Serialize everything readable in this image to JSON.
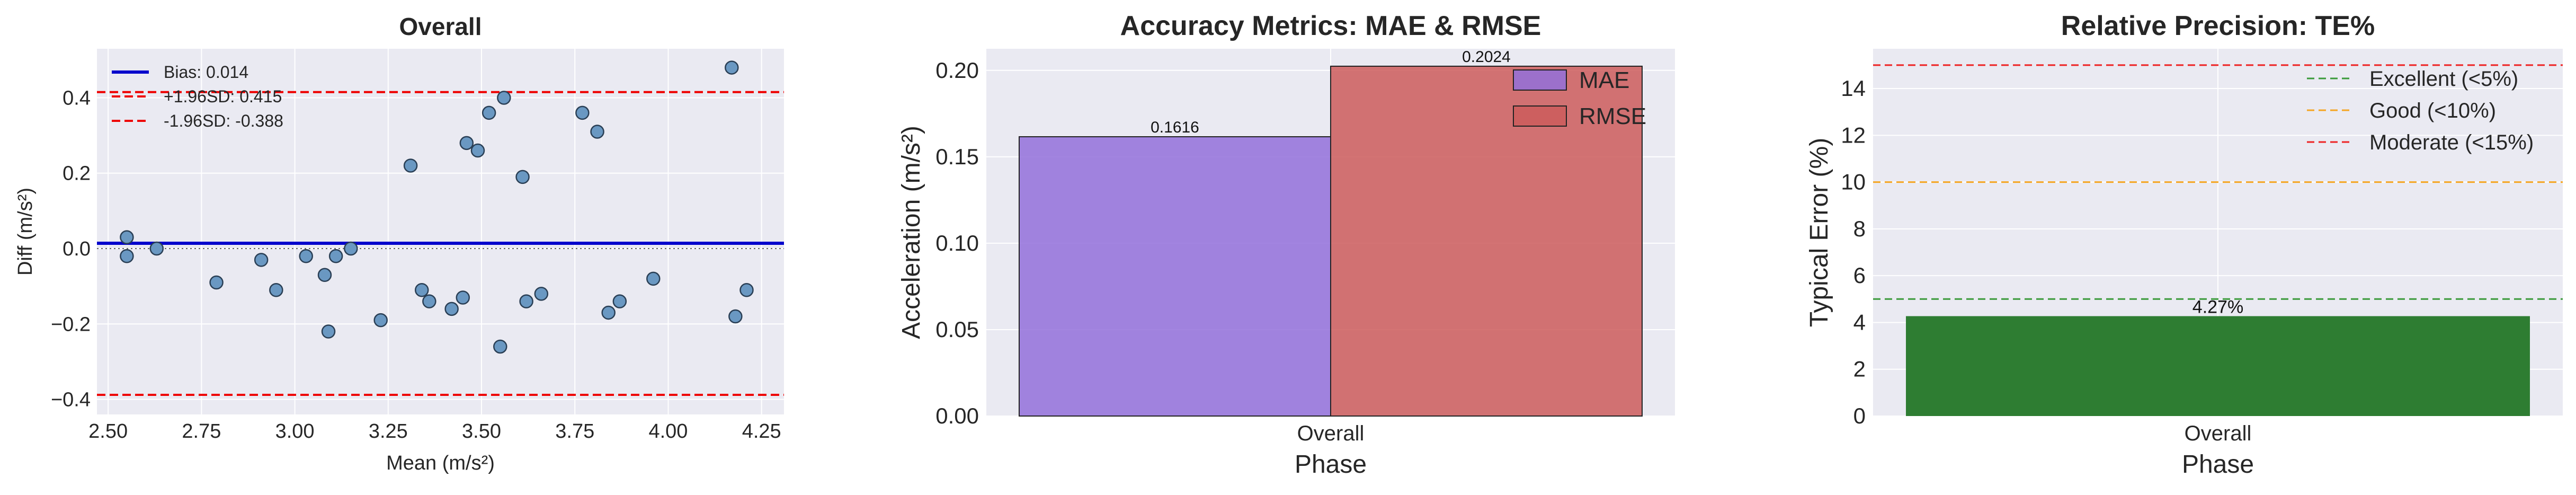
{
  "chart_data": [
    {
      "type": "scatter",
      "title": "Overall",
      "xlabel": "Mean (m/s²)",
      "ylabel": "Diff (m/s²)",
      "xlim": [
        2.47,
        4.31
      ],
      "ylim": [
        -0.44,
        0.53
      ],
      "xticks": [
        "2.50",
        "2.75",
        "3.00",
        "3.25",
        "3.50",
        "3.75",
        "4.00",
        "4.25"
      ],
      "yticks": [
        "−0.4",
        "−0.2",
        "0.0",
        "0.2",
        "0.4"
      ],
      "grid": true,
      "points": [
        [
          2.55,
          0.03
        ],
        [
          2.55,
          -0.02
        ],
        [
          2.63,
          0.0
        ],
        [
          2.79,
          -0.09
        ],
        [
          2.91,
          -0.03
        ],
        [
          2.95,
          -0.11
        ],
        [
          3.03,
          -0.02
        ],
        [
          3.08,
          -0.07
        ],
        [
          3.09,
          -0.22
        ],
        [
          3.11,
          -0.02
        ],
        [
          3.15,
          0.0
        ],
        [
          3.23,
          -0.19
        ],
        [
          3.31,
          0.22
        ],
        [
          3.34,
          -0.11
        ],
        [
          3.36,
          -0.14
        ],
        [
          3.42,
          -0.16
        ],
        [
          3.45,
          -0.13
        ],
        [
          3.46,
          0.28
        ],
        [
          3.49,
          0.26
        ],
        [
          3.52,
          0.36
        ],
        [
          3.55,
          -0.26
        ],
        [
          3.56,
          0.4
        ],
        [
          3.61,
          0.19
        ],
        [
          3.62,
          -0.14
        ],
        [
          3.66,
          -0.12
        ],
        [
          3.77,
          0.36
        ],
        [
          3.81,
          0.31
        ],
        [
          3.84,
          -0.17
        ],
        [
          3.87,
          -0.14
        ],
        [
          3.96,
          -0.08
        ],
        [
          4.17,
          0.48
        ],
        [
          4.18,
          -0.18
        ],
        [
          4.21,
          -0.11
        ]
      ],
      "lines": [
        {
          "name": "Bias: 0.014",
          "y": 0.014,
          "color": "#0000cc",
          "style": "solid"
        },
        {
          "name": "+1.96SD: 0.415",
          "y": 0.415,
          "color": "#ee0000",
          "style": "dashed"
        },
        {
          "name": "-1.96SD: -0.388",
          "y": -0.388,
          "color": "#ee0000",
          "style": "dashed"
        }
      ],
      "zero_line": 0,
      "legend": "top-left"
    },
    {
      "type": "bar",
      "title": "Accuracy Metrics: MAE & RMSE",
      "xlabel": "Phase",
      "ylabel": "Acceleration (m/s²)",
      "categories": [
        "Overall"
      ],
      "ylim": [
        0,
        0.2125
      ],
      "yticks": [
        "0.00",
        "0.05",
        "0.10",
        "0.15",
        "0.20"
      ],
      "series": [
        {
          "name": "MAE",
          "values": [
            0.1616
          ],
          "label": "0.1616",
          "color": "#9370db"
        },
        {
          "name": "RMSE",
          "values": [
            0.2024
          ],
          "label": "0.2024",
          "color": "#cd5c5c"
        }
      ],
      "grid": true,
      "legend": "top-right"
    },
    {
      "type": "bar",
      "title": "Relative Precision: TE%",
      "xlabel": "Phase",
      "ylabel": "Typical Error (%)",
      "categories": [
        "Overall"
      ],
      "ylim": [
        0,
        15.7
      ],
      "yticks": [
        "0",
        "2",
        "4",
        "6",
        "8",
        "10",
        "12",
        "14"
      ],
      "series": [
        {
          "values": [
            4.27
          ],
          "label": "4.27%",
          "color": "#2e7d32"
        }
      ],
      "thresholds": [
        {
          "name": "Excellent (<5%)",
          "y": 5,
          "color": "#3a9a3a"
        },
        {
          "name": "Good (<10%)",
          "y": 10,
          "color": "#f5a623"
        },
        {
          "name": "Moderate (<15%)",
          "y": 15,
          "color": "#ee2222"
        }
      ],
      "grid": true,
      "legend": "top-right"
    }
  ]
}
